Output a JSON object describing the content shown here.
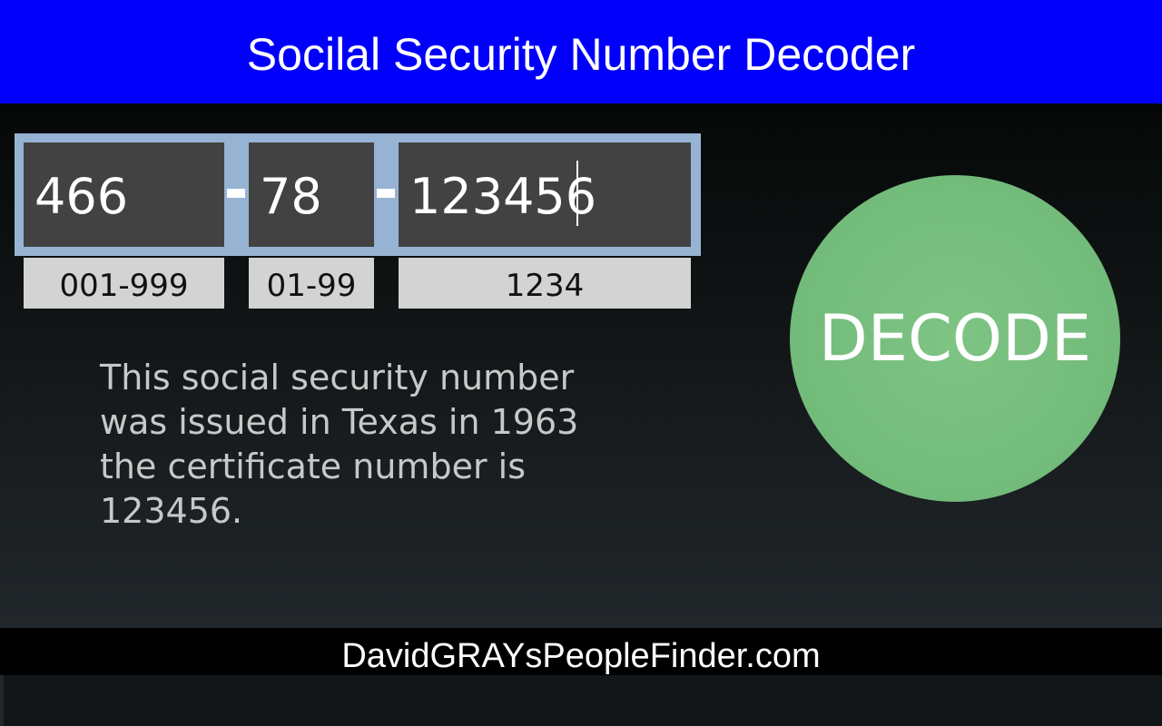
{
  "header": {
    "title": "Socilal Security Number Decoder",
    "color": "#0000fa"
  },
  "ssn": {
    "area": {
      "value": "466",
      "hint": "001-999"
    },
    "group": {
      "value": "78",
      "hint": "01-99"
    },
    "serial": {
      "value": "123456",
      "hint": "1234"
    }
  },
  "result": {
    "text": "This social security number was issued in Texas in 1963 the certificate number is 123456."
  },
  "decode_button": {
    "label": "DECODE",
    "color": "#7ec484"
  },
  "footer": {
    "text": "DavidGRAYsPeopleFinder.com"
  }
}
